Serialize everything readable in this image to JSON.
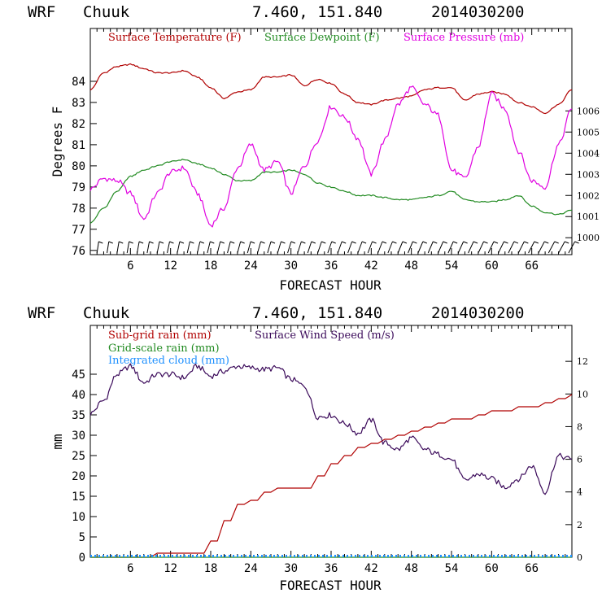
{
  "colors": {
    "temperature": "#b00000",
    "dewpoint": "#228b22",
    "pressure": "#e000e0",
    "subgrid_rain": "#b00000",
    "gridscale_rain": "#228b22",
    "cloud": "#1e90ff",
    "wind": "#3b0a5a"
  },
  "panels": [
    {
      "header": {
        "model": "WRF",
        "station": "Chuuk",
        "coords": "7.460, 151.840",
        "init": "2014030200"
      }
    },
    {
      "header": {
        "model": "WRF",
        "station": "Chuuk",
        "coords": "7.460, 151.840",
        "init": "2014030200"
      }
    }
  ],
  "chart_data": [
    {
      "type": "line",
      "xlabel": "FORECAST HOUR",
      "ylabel": "Degrees F",
      "xlim": [
        0,
        72
      ],
      "ylim": [
        75.8,
        86.5
      ],
      "y2lim": [
        999.2,
        1009.9
      ],
      "xticks": [
        6,
        12,
        18,
        24,
        30,
        36,
        42,
        48,
        54,
        60,
        66
      ],
      "yticks": [
        76,
        77,
        78,
        79,
        80,
        81,
        82,
        83,
        84
      ],
      "y2ticks": [
        1000,
        1001,
        1002,
        1003,
        1004,
        1005,
        1006
      ],
      "wind_barbs_row": true,
      "x": [
        0,
        2,
        4,
        6,
        8,
        10,
        12,
        14,
        16,
        18,
        20,
        22,
        24,
        26,
        28,
        30,
        32,
        34,
        36,
        38,
        40,
        42,
        44,
        46,
        48,
        50,
        52,
        54,
        56,
        58,
        60,
        62,
        64,
        66,
        68,
        70,
        72
      ],
      "series": [
        {
          "name": "Surface Temperature (F)",
          "axis": "left",
          "color_key": "temperature",
          "values": [
            83.6,
            84.4,
            84.7,
            84.8,
            84.6,
            84.4,
            84.4,
            84.5,
            84.2,
            83.7,
            83.2,
            83.5,
            83.6,
            84.2,
            84.2,
            84.3,
            83.8,
            84.1,
            83.9,
            83.4,
            83.0,
            82.9,
            83.1,
            83.2,
            83.3,
            83.6,
            83.7,
            83.7,
            83.1,
            83.4,
            83.5,
            83.4,
            83.0,
            82.8,
            82.5,
            82.9,
            83.6
          ]
        },
        {
          "name": "Surface Dewpoint (F)",
          "axis": "left",
          "color_key": "dewpoint",
          "values": [
            77.3,
            78.0,
            78.8,
            79.5,
            79.8,
            80.0,
            80.2,
            80.3,
            80.1,
            79.9,
            79.6,
            79.3,
            79.3,
            79.7,
            79.7,
            79.8,
            79.6,
            79.2,
            79.0,
            78.8,
            78.6,
            78.6,
            78.5,
            78.4,
            78.4,
            78.5,
            78.6,
            78.8,
            78.4,
            78.3,
            78.3,
            78.4,
            78.6,
            78.1,
            77.8,
            77.7,
            77.9
          ]
        },
        {
          "name": "Surface Pressure (mb)",
          "axis": "right",
          "color_key": "pressure",
          "values": [
            1002.3,
            1002.8,
            1002.7,
            1002.1,
            1000.9,
            1002.1,
            1003.1,
            1003.3,
            1002.1,
            1000.6,
            1001.4,
            1003.3,
            1004.4,
            1003.2,
            1003.6,
            1002.1,
            1003.4,
            1004.6,
            1006.2,
            1005.7,
            1004.7,
            1003.0,
            1004.6,
            1006.3,
            1007.1,
            1006.3,
            1005.8,
            1003.2,
            1002.8,
            1004.3,
            1006.8,
            1006.1,
            1004.1,
            1002.7,
            1002.4,
            1004.4,
            1006.1
          ]
        }
      ]
    },
    {
      "type": "line",
      "xlabel": "FORECAST HOUR",
      "ylabel": "mm",
      "xlim": [
        0,
        72
      ],
      "ylim": [
        0,
        57
      ],
      "y2lim": [
        0,
        14.2
      ],
      "xticks": [
        6,
        12,
        18,
        24,
        30,
        36,
        42,
        48,
        54,
        60,
        66
      ],
      "yticks": [
        0,
        5,
        10,
        15,
        20,
        25,
        30,
        35,
        40,
        45
      ],
      "y2ticks": [
        0,
        2,
        4,
        6,
        8,
        10,
        12
      ],
      "x": [
        0,
        2,
        4,
        6,
        8,
        10,
        12,
        14,
        16,
        18,
        20,
        22,
        24,
        26,
        28,
        30,
        32,
        34,
        36,
        38,
        40,
        42,
        44,
        46,
        48,
        50,
        52,
        54,
        56,
        58,
        60,
        62,
        64,
        66,
        68,
        70,
        72
      ],
      "series": [
        {
          "name": "Sub-grid rain (mm)",
          "axis": "left",
          "color_key": "subgrid_rain",
          "values": [
            0,
            0,
            0,
            0,
            0,
            1,
            1,
            1,
            1,
            4,
            9,
            13,
            14,
            16,
            17,
            17,
            17,
            20,
            23,
            25,
            27,
            28,
            29,
            30,
            31,
            32,
            33,
            34,
            34,
            35,
            36,
            36,
            37,
            37,
            38,
            39,
            40
          ]
        },
        {
          "name": "Grid-scale rain (mm)",
          "axis": "left",
          "color_key": "gridscale_rain",
          "values": [
            0,
            0,
            0,
            0,
            0,
            0,
            0,
            0,
            0,
            0,
            0,
            0,
            0,
            0,
            0,
            0,
            0,
            0,
            0,
            0,
            0,
            0,
            0,
            0,
            0,
            0,
            0,
            0,
            0,
            0,
            0,
            0,
            0,
            0,
            0,
            0,
            0
          ]
        },
        {
          "name": "Integrated cloud (mm)",
          "axis": "left",
          "color_key": "cloud",
          "values": [
            0.3,
            0.3,
            0.3,
            0.3,
            0.3,
            0.3,
            0.3,
            0.3,
            0.3,
            0.3,
            0.3,
            0.3,
            0.3,
            0.3,
            0.3,
            0.3,
            0.3,
            0.3,
            0.3,
            0.3,
            0.3,
            0.3,
            0.3,
            0.3,
            0.3,
            0.3,
            0.3,
            0.3,
            0.3,
            0.3,
            0.3,
            0.3,
            0.3,
            0.3,
            0.3,
            0.3,
            0.3
          ]
        },
        {
          "name": "Surface Wind Speed (m/s)",
          "axis": "right",
          "color_key": "wind",
          "values": [
            8.8,
            9.6,
            11.2,
            11.7,
            10.7,
            11.2,
            11.2,
            11.0,
            11.7,
            11.1,
            11.4,
            11.7,
            11.6,
            11.5,
            11.6,
            10.9,
            10.5,
            8.6,
            8.7,
            8.2,
            7.6,
            8.4,
            7.0,
            6.6,
            7.3,
            6.6,
            6.3,
            6.0,
            4.7,
            5.1,
            4.8,
            4.3,
            4.8,
            5.6,
            4.0,
            6.2,
            6.0
          ]
        }
      ]
    }
  ]
}
